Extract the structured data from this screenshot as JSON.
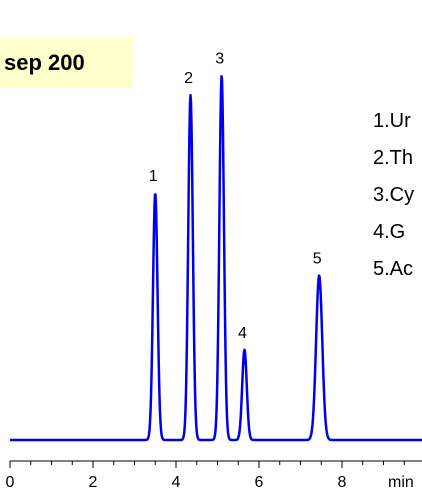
{
  "title": "sep 200",
  "chart_data": {
    "type": "line",
    "xlabel": "min",
    "xlim": [
      0,
      10
    ],
    "x_ticks": [
      0,
      2,
      4,
      6,
      8
    ],
    "tick_labels": [
      "0",
      "2",
      "4",
      "6",
      "8"
    ],
    "series": [
      {
        "line_color": "#0000ee",
        "peaks": [
          {
            "label": "1",
            "x": 3.5,
            "height": 0.63
          },
          {
            "label": "2",
            "x": 4.35,
            "height": 0.88
          },
          {
            "label": "3",
            "x": 5.1,
            "height": 0.93
          },
          {
            "label": "4",
            "x": 5.65,
            "height": 0.23
          },
          {
            "label": "5",
            "x": 7.45,
            "height": 0.42
          }
        ]
      }
    ],
    "peak_legend": [
      "1.Ur",
      "2.Th",
      "3.Cy",
      "4.G",
      "5.Ac"
    ]
  }
}
